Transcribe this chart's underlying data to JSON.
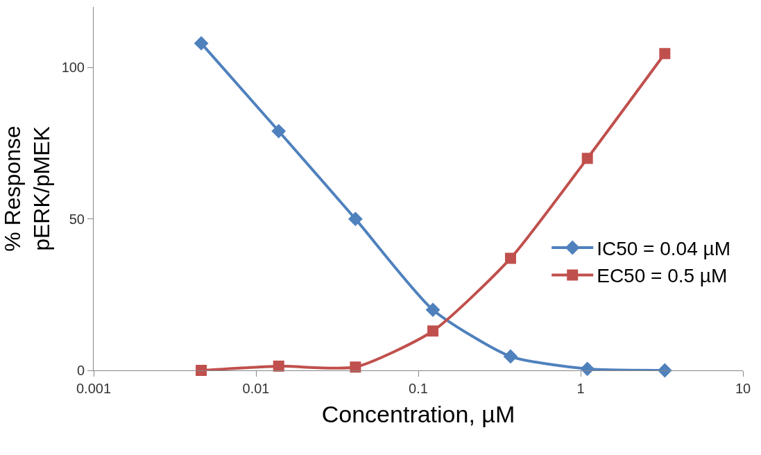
{
  "chart_data": {
    "type": "line",
    "xlabel": "Concentration, µM",
    "ylabel": "% Response\npERK/pMEK",
    "x": [
      0.0046,
      0.0138,
      0.041,
      0.123,
      0.37,
      1.1,
      3.3
    ],
    "series": [
      {
        "name": "IC50 = 0.04 µM",
        "color": "#4f81bd",
        "marker": "diamond",
        "values": [
          108,
          79,
          50,
          20,
          4.6,
          0.5,
          0
        ]
      },
      {
        "name": "EC50 = 0.5 µM",
        "color": "#c0504d",
        "marker": "square",
        "values": [
          0,
          1.4,
          1.1,
          13,
          37,
          70,
          104.6
        ]
      }
    ],
    "log": "x",
    "xlim": [
      0.001,
      10
    ],
    "xticks": [
      0.001,
      0.01,
      0.1,
      1,
      10
    ],
    "ylim": [
      0,
      120
    ],
    "yticks": [
      0,
      50,
      100
    ],
    "legend": "right",
    "line_style": "solid"
  }
}
